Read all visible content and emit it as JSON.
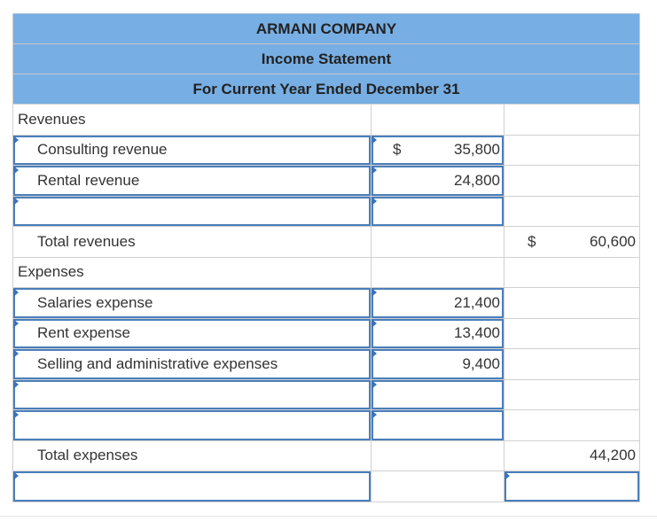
{
  "header": {
    "company": "ARMANI COMPANY",
    "statement": "Income Statement",
    "period": "For Current Year Ended December 31"
  },
  "revenues": {
    "section_label": "Revenues",
    "items": [
      {
        "label": "Consulting revenue",
        "currency": "$",
        "amount": "35,800"
      },
      {
        "label": "Rental revenue",
        "currency": "",
        "amount": "24,800"
      },
      {
        "label": "",
        "currency": "",
        "amount": ""
      }
    ],
    "total_label": "Total revenues",
    "total_currency": "$",
    "total_amount": "60,600"
  },
  "expenses": {
    "section_label": "Expenses",
    "items": [
      {
        "label": "Salaries expense",
        "amount": "21,400"
      },
      {
        "label": "Rent expense",
        "amount": "13,400"
      },
      {
        "label": "Selling and administrative expenses",
        "amount": "9,400"
      },
      {
        "label": "",
        "amount": ""
      },
      {
        "label": "",
        "amount": ""
      }
    ],
    "total_label": "Total expenses",
    "total_amount": "44,200"
  },
  "final_row": {
    "label": "",
    "amount": ""
  },
  "colors": {
    "header_bg": "#77aee3",
    "input_border": "#4a7ebb",
    "flag": "#3b73b9"
  }
}
